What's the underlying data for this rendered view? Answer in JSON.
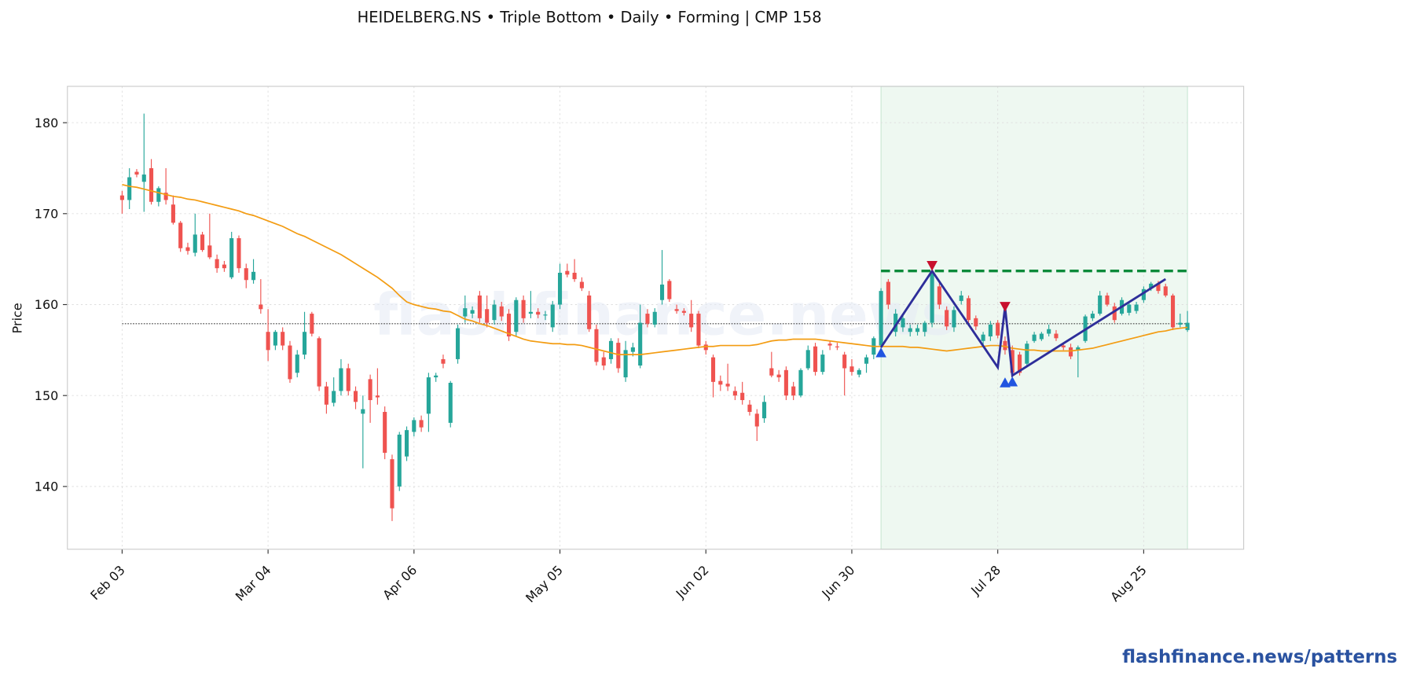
{
  "chart_data": {
    "type": "candlestick",
    "title": "HEIDELBERG.NS  •  Triple Bottom  •  Daily  •  Forming  |  CMP 158",
    "ylabel": "Price",
    "watermark": "flashfinance.news",
    "xlim": [
      -7.5,
      153.7
    ],
    "ylim": [
      133.1,
      184
    ],
    "yticks": [
      140,
      150,
      160,
      170,
      180
    ],
    "xticks": [
      {
        "value": 0,
        "label": "Feb 03"
      },
      {
        "value": 20,
        "label": "Mar 04"
      },
      {
        "value": 40,
        "label": "Apr 06"
      },
      {
        "value": 60,
        "label": "May 05"
      },
      {
        "value": 80,
        "label": "Jun 02"
      },
      {
        "value": 100,
        "label": "Jun 30"
      },
      {
        "value": 120,
        "label": "Jul 28"
      },
      {
        "value": 140,
        "label": "Aug 25"
      }
    ],
    "grid": true,
    "up_color": "#26a69a",
    "down_color": "#ef5350",
    "open": [
      172,
      171.5,
      174.6,
      173.5,
      175,
      171.3,
      172.3,
      171,
      169,
      166.3,
      165.7,
      167.7,
      166.5,
      165,
      164.4,
      163,
      167.3,
      164,
      162.7,
      160,
      157,
      155.5,
      157,
      155.5,
      152.5,
      154.5,
      159,
      156.3,
      151,
      149.2,
      150.5,
      153,
      150.5,
      148,
      151.8,
      150,
      148.2,
      143,
      140,
      143.3,
      146,
      147.3,
      148,
      152,
      154,
      147,
      154,
      158.7,
      159,
      161,
      159.5,
      158.3,
      159.8,
      159,
      157,
      160.5,
      159,
      159.2,
      158.8,
      157.5,
      160,
      163.7,
      163.5,
      162.5,
      161,
      157.3,
      154.2,
      154,
      155.8,
      152,
      154.8,
      153.3,
      159,
      157.8,
      160.5,
      162.6,
      159.5,
      159.3,
      159,
      159,
      155.6,
      154.2,
      151.6,
      151.3,
      150.5,
      150.3,
      149,
      148,
      147.5,
      153,
      152.3,
      152.8,
      151,
      150,
      153,
      155.4,
      152.6,
      155.7,
      155.4,
      154.5,
      153.2,
      152.3,
      153.5,
      154.5,
      155.5,
      162.5,
      157,
      157.5,
      157,
      157,
      157,
      158,
      162,
      159.4,
      157.5,
      160.4,
      160.7,
      158.5,
      156,
      156.5,
      158,
      156,
      155,
      154.5,
      153.5,
      156,
      156.2,
      156.8,
      156.8,
      155.5,
      155.3,
      155,
      156,
      158.5,
      159,
      161,
      159.8,
      159,
      159.1,
      159.3,
      160.5,
      161.8,
      162.3,
      162,
      161,
      157.8,
      157.2
    ],
    "high": [
      172.5,
      175,
      174.9,
      181,
      176,
      173,
      175,
      172,
      169.2,
      166.8,
      170,
      168,
      170,
      165.5,
      164.8,
      168,
      167.6,
      164.5,
      165,
      162.8,
      159.5,
      157.2,
      157.5,
      156,
      155,
      159.2,
      159.2,
      156.5,
      151.5,
      152,
      154,
      153.5,
      151,
      150,
      152.3,
      153,
      148.8,
      143.5,
      146,
      146.6,
      147.6,
      147.8,
      152.5,
      152.5,
      154.5,
      151.6,
      157.8,
      161,
      159.8,
      161.5,
      161,
      160.5,
      160.3,
      159.5,
      160.8,
      161,
      161.5,
      159.6,
      159.3,
      160.4,
      164.5,
      164.5,
      165,
      163,
      161.5,
      157.8,
      154.8,
      156.3,
      156.3,
      156,
      155.8,
      160,
      159.5,
      159.6,
      166,
      162.8,
      160,
      159.6,
      160.5,
      159.3,
      156,
      154.5,
      152.2,
      153.5,
      151,
      151.5,
      149.5,
      148.5,
      150,
      154.8,
      152.8,
      153.2,
      151.5,
      153,
      155.5,
      155.8,
      155,
      156,
      155.8,
      154.8,
      154,
      153,
      154.5,
      156.5,
      161.8,
      162.8,
      159.5,
      159,
      157.8,
      157.8,
      158.2,
      164,
      162.5,
      159.8,
      159.8,
      161.5,
      161,
      158.8,
      157,
      158.2,
      158.3,
      156.5,
      155.5,
      154.8,
      156,
      157,
      157,
      157.8,
      157.2,
      155.8,
      155.7,
      155.5,
      158.9,
      159.3,
      161.5,
      161.3,
      160.2,
      160.8,
      160.3,
      160.3,
      162,
      162.5,
      162.6,
      162.3,
      161.2,
      159,
      159.3
    ],
    "low": [
      170,
      170.5,
      174,
      170.2,
      171,
      170.8,
      171,
      168.8,
      165.8,
      165.5,
      165.3,
      165.8,
      165,
      163.5,
      163.6,
      162.8,
      163.5,
      161.8,
      162.3,
      159,
      153.8,
      155,
      155,
      151.4,
      152,
      154,
      156.5,
      150.5,
      148,
      148.8,
      150,
      150,
      148.5,
      142,
      147,
      149,
      143,
      136.2,
      139.5,
      142.8,
      145.5,
      146,
      146,
      151.5,
      153,
      146.5,
      153.5,
      158,
      158.5,
      158,
      157.5,
      157.8,
      158.2,
      156,
      156.5,
      158,
      158.5,
      158.5,
      158.3,
      157,
      159.5,
      163,
      162.5,
      161.5,
      157,
      153.3,
      152.8,
      153.5,
      152.5,
      151.5,
      154.3,
      153,
      157.5,
      157.5,
      160,
      160.3,
      159,
      158.8,
      157,
      155.2,
      154.5,
      149.8,
      150.5,
      150.5,
      149.5,
      149,
      147.8,
      145,
      147,
      152,
      151.5,
      149.5,
      149.5,
      149.8,
      152.8,
      152.2,
      152.3,
      155,
      155,
      150,
      152.2,
      152,
      152.5,
      154,
      155.2,
      159.5,
      156.5,
      157,
      156.5,
      156.6,
      156.5,
      157.5,
      159.5,
      157.2,
      157,
      160,
      158,
      157.2,
      155.5,
      156,
      156.3,
      154.5,
      152,
      152.2,
      153.2,
      155.8,
      156,
      156.5,
      156,
      155,
      154,
      152,
      155.8,
      158.2,
      158.8,
      159.8,
      158,
      158.8,
      158.8,
      159,
      160.2,
      161.5,
      161.2,
      160.8,
      157.2,
      157.5,
      157
    ],
    "close": [
      171.5,
      174,
      174.3,
      174.3,
      171.3,
      172.8,
      171.5,
      169,
      166.2,
      165.9,
      167.7,
      166,
      165.2,
      164,
      164,
      167.3,
      164,
      162.7,
      163.6,
      159.5,
      155,
      157,
      155.5,
      151.8,
      154.5,
      157,
      156.8,
      151,
      149,
      150.5,
      153,
      150.5,
      149.3,
      148.5,
      149.5,
      149.8,
      143.7,
      137.6,
      145.7,
      146.2,
      147.3,
      146.5,
      152,
      152.2,
      153.5,
      151.4,
      157.4,
      159.6,
      159.4,
      158.5,
      158,
      160,
      158.7,
      156.5,
      160.5,
      158.5,
      159.2,
      158.9,
      158.9,
      160,
      163.5,
      163.3,
      162.8,
      161.8,
      157.3,
      153.7,
      153.3,
      156,
      153,
      155,
      155.3,
      158,
      157.9,
      159.2,
      162.2,
      160.6,
      159.3,
      159.1,
      157.5,
      155.5,
      155,
      151.5,
      151.2,
      151,
      150,
      149.5,
      148.2,
      146.6,
      149.3,
      152.2,
      152,
      150,
      150,
      152.8,
      155,
      152.6,
      154.5,
      155.5,
      155.3,
      153,
      152.6,
      152.8,
      154.2,
      156.3,
      161.5,
      160,
      159,
      158.5,
      157.4,
      157.4,
      158,
      163.5,
      160,
      157.6,
      159.4,
      161,
      158.3,
      157.6,
      156.7,
      157.8,
      156.6,
      155,
      152.5,
      152.5,
      155.7,
      156.7,
      156.8,
      157.3,
      156.3,
      155.3,
      154.3,
      155.3,
      158.7,
      159,
      161,
      160,
      158.3,
      160.5,
      160,
      160,
      161.7,
      162.3,
      161.5,
      161,
      157.5,
      158,
      158
    ],
    "moving_average": {
      "color": "#f39c12",
      "values": [
        173.2,
        173.0,
        172.9,
        172.7,
        172.5,
        172.3,
        172.1,
        171.9,
        171.8,
        171.6,
        171.5,
        171.3,
        171.1,
        170.9,
        170.7,
        170.5,
        170.3,
        170.0,
        169.8,
        169.5,
        169.2,
        168.9,
        168.6,
        168.2,
        167.8,
        167.5,
        167.1,
        166.7,
        166.3,
        165.9,
        165.5,
        165.0,
        164.5,
        164.0,
        163.5,
        163.0,
        162.4,
        161.8,
        161.0,
        160.3,
        160.0,
        159.8,
        159.6,
        159.5,
        159.3,
        159.2,
        158.8,
        158.4,
        158.2,
        157.9,
        157.7,
        157.4,
        157.1,
        156.8,
        156.5,
        156.2,
        156.0,
        155.9,
        155.8,
        155.7,
        155.7,
        155.6,
        155.6,
        155.5,
        155.3,
        155.1,
        154.9,
        154.7,
        154.5,
        154.5,
        154.5,
        154.5,
        154.6,
        154.7,
        154.8,
        154.9,
        155.0,
        155.1,
        155.2,
        155.3,
        155.4,
        155.4,
        155.5,
        155.5,
        155.5,
        155.5,
        155.5,
        155.6,
        155.8,
        156.0,
        156.1,
        156.1,
        156.2,
        156.2,
        156.2,
        156.2,
        156.1,
        156.0,
        155.9,
        155.8,
        155.7,
        155.6,
        155.5,
        155.4,
        155.4,
        155.4,
        155.4,
        155.4,
        155.3,
        155.3,
        155.2,
        155.1,
        155.0,
        154.9,
        155.0,
        155.1,
        155.2,
        155.3,
        155.4,
        155.5,
        155.5,
        155.4,
        155.2,
        155.1,
        155.0,
        155.0,
        154.9,
        154.9,
        154.9,
        154.9,
        154.9,
        155.0,
        155.1,
        155.2,
        155.4,
        155.6,
        155.8,
        156.0,
        156.2,
        156.4,
        156.6,
        156.8,
        157.0,
        157.1,
        157.3,
        157.4,
        157.5
      ]
    },
    "cmp_line": 157.9,
    "pattern": {
      "region": [
        104,
        146
      ],
      "region_color": "#e3f3e8",
      "resistance": {
        "value": 163.7,
        "color": "#0a8a3a"
      },
      "line_color": "#2e2e9a",
      "points": [
        {
          "x": 104,
          "y": 155.3
        },
        {
          "x": 111,
          "y": 163.7
        },
        {
          "x": 120,
          "y": 153.1
        },
        {
          "x": 121,
          "y": 159.7
        },
        {
          "x": 122,
          "y": 152.2
        },
        {
          "x": 143,
          "y": 162.8
        }
      ],
      "lows": [
        {
          "x": 104,
          "y": 154.7
        },
        {
          "x": 121,
          "y": 151.4
        },
        {
          "x": 122,
          "y": 151.5
        }
      ],
      "highs": [
        {
          "x": 111,
          "y": 164.3
        },
        {
          "x": 121,
          "y": 159.8
        }
      ],
      "low_color": "#2155e0",
      "high_color": "#c8102e"
    }
  },
  "footer": "flashfinance.news/patterns"
}
